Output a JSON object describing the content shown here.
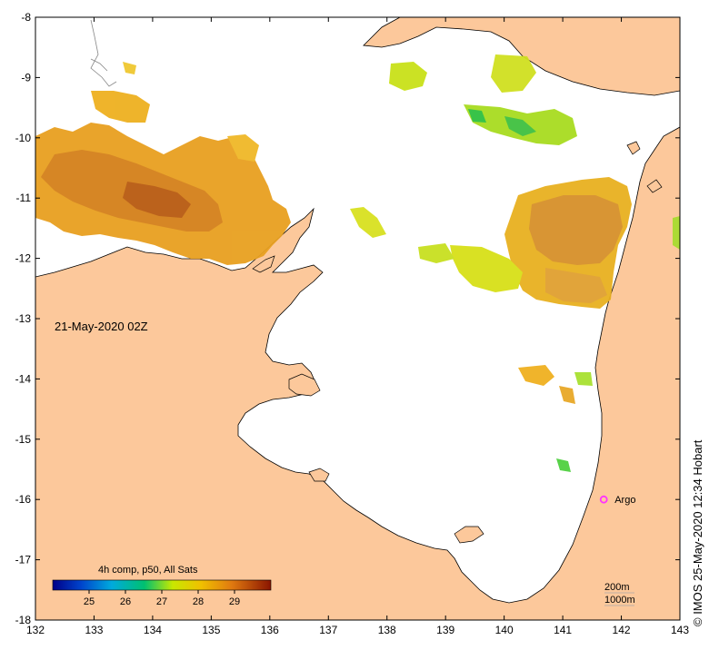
{
  "map": {
    "date_label": "21-May-2020 02Z",
    "credit": "© IMOS 25-May-2020 12:34 Hobart",
    "lon_range": [
      132,
      143
    ],
    "lat_range": [
      -18,
      -8
    ],
    "lon_ticks": [
      132,
      133,
      134,
      135,
      136,
      137,
      138,
      139,
      140,
      141,
      142,
      143
    ],
    "lat_ticks": [
      -8,
      -9,
      -10,
      -11,
      -12,
      -13,
      -14,
      -15,
      -16,
      -17,
      -18
    ],
    "colors": {
      "land": "#fcc89b",
      "ocean": "#ffffff",
      "coast": "#000000",
      "marker": "#ff33ff"
    }
  },
  "colorbar": {
    "title": "4h comp, p50, All Sats",
    "ticks": [
      25,
      26,
      27,
      28,
      29
    ],
    "range": [
      24,
      30
    ]
  },
  "legend": {
    "depth_200": "200m",
    "depth_1000": "1000m"
  },
  "marker": {
    "label": "Argo",
    "lon": 141.7,
    "lat": -16.0
  }
}
